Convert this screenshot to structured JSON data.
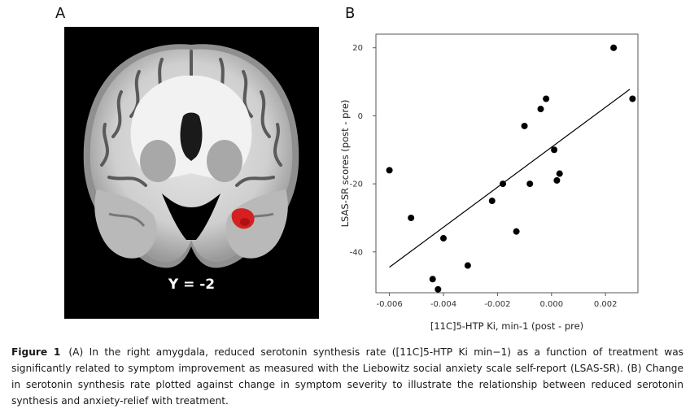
{
  "panels": {
    "a_label": "A",
    "b_label": "B",
    "coordinate_label": "Y = -2"
  },
  "chart_data": {
    "type": "scatter",
    "xlabel": "[11C]5-HTP Ki, min-1 (post - pre)",
    "ylabel": "LSAS-SR scores (post - pre)",
    "xlim": [
      -0.0065,
      0.0032
    ],
    "ylim": [
      -52,
      24
    ],
    "x_ticks": [
      -0.006,
      -0.004,
      -0.002,
      0.0,
      0.002
    ],
    "x_tick_labels": [
      "-0.006",
      "-0.004",
      "-0.002",
      "0.000",
      "0.002"
    ],
    "y_ticks": [
      -40,
      -20,
      0,
      20
    ],
    "y_tick_labels": [
      "-40",
      "-20",
      "0",
      "20"
    ],
    "grid": false,
    "points": [
      {
        "x": -0.006,
        "y": -16
      },
      {
        "x": -0.0052,
        "y": -30
      },
      {
        "x": -0.0044,
        "y": -48
      },
      {
        "x": -0.0042,
        "y": -51
      },
      {
        "x": -0.004,
        "y": -36
      },
      {
        "x": -0.0031,
        "y": -44
      },
      {
        "x": -0.0022,
        "y": -25
      },
      {
        "x": -0.0018,
        "y": -20
      },
      {
        "x": -0.0013,
        "y": -34
      },
      {
        "x": -0.001,
        "y": -3
      },
      {
        "x": -0.0008,
        "y": -20
      },
      {
        "x": -0.0004,
        "y": 2
      },
      {
        "x": -0.0002,
        "y": 5
      },
      {
        "x": 0.0001,
        "y": -10
      },
      {
        "x": 0.0002,
        "y": -19
      },
      {
        "x": 0.0003,
        "y": -17
      },
      {
        "x": 0.0023,
        "y": 20
      },
      {
        "x": 0.003,
        "y": 5
      }
    ],
    "fit_line": {
      "x": [
        -0.006,
        0.0029
      ],
      "y": [
        -44.5,
        7.8
      ]
    }
  },
  "caption": {
    "figure_label": "Figure 1",
    "text": "(A) In the right amygdala, reduced serotonin synthesis rate ([11C]5-HTP Ki min−1) as a function of treatment was significantly related to symptom improvement as measured with the Liebowitz social anxiety scale self-report (LSAS-SR). (B) Change in serotonin synthesis rate plotted against change in symptom severity to illustrate the relationship between reduced serotonin synthesis and anxiety-relief with treatment."
  },
  "colors": {
    "activation": "#d42020",
    "points": "#000000",
    "axis": "#444444"
  }
}
